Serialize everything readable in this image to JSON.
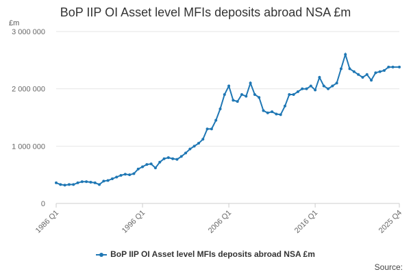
{
  "chart_data": {
    "type": "line",
    "title": "BoP IIP OI Asset level MFIs deposits abroad NSA £m",
    "ylabel": "£m",
    "xlabel": "",
    "ylim": [
      0,
      3000000
    ],
    "y_ticks": [
      0,
      1000000,
      2000000,
      3000000
    ],
    "y_tick_labels": [
      "0",
      "1 000 000",
      "2 000 000",
      "3 000 000"
    ],
    "x_tick_labels": [
      "1986 Q1",
      "1996 Q1",
      "2006 Q1",
      "2016 Q1",
      "2025 Q4"
    ],
    "x_ticks": [
      1986.0,
      1996.0,
      2006.0,
      2016.0,
      2025.75
    ],
    "xlim": [
      1986.0,
      2025.75
    ],
    "grid": true,
    "legend_position": "bottom-center",
    "color": "#1f77b4",
    "series": [
      {
        "name": "BoP IIP OI Asset level MFIs deposits abroad NSA £m",
        "x": [
          1986.0,
          1986.5,
          1987.0,
          1987.5,
          1988.0,
          1988.5,
          1989.0,
          1989.5,
          1990.0,
          1990.5,
          1991.0,
          1991.5,
          1992.0,
          1992.5,
          1993.0,
          1993.5,
          1994.0,
          1994.5,
          1995.0,
          1995.5,
          1996.0,
          1996.5,
          1997.0,
          1997.5,
          1998.0,
          1998.5,
          1999.0,
          1999.5,
          2000.0,
          2000.5,
          2001.0,
          2001.5,
          2002.0,
          2002.5,
          2003.0,
          2003.5,
          2004.0,
          2004.5,
          2005.0,
          2005.5,
          2006.0,
          2006.5,
          2007.0,
          2007.5,
          2008.0,
          2008.5,
          2009.0,
          2009.5,
          2010.0,
          2010.5,
          2011.0,
          2011.5,
          2012.0,
          2012.5,
          2013.0,
          2013.5,
          2014.0,
          2014.5,
          2015.0,
          2015.5,
          2016.0,
          2016.5,
          2017.0,
          2017.5,
          2018.0,
          2018.5,
          2019.0,
          2019.5,
          2020.0,
          2020.5,
          2021.0,
          2021.5,
          2022.0,
          2022.5,
          2023.0,
          2023.5,
          2024.0,
          2024.5,
          2025.0,
          2025.75
        ],
        "values": [
          360000,
          330000,
          320000,
          330000,
          330000,
          360000,
          380000,
          380000,
          370000,
          360000,
          330000,
          390000,
          400000,
          430000,
          460000,
          490000,
          510000,
          500000,
          520000,
          600000,
          640000,
          680000,
          690000,
          620000,
          720000,
          780000,
          800000,
          780000,
          770000,
          820000,
          880000,
          950000,
          1000000,
          1050000,
          1120000,
          1300000,
          1300000,
          1450000,
          1650000,
          1900000,
          2050000,
          1800000,
          1780000,
          1900000,
          1870000,
          2100000,
          1900000,
          1850000,
          1620000,
          1580000,
          1600000,
          1560000,
          1550000,
          1700000,
          1900000,
          1900000,
          1950000,
          2000000,
          2000000,
          2050000,
          1980000,
          2200000,
          2050000,
          2000000,
          2050000,
          2100000,
          2350000,
          2600000,
          2350000,
          2300000,
          2250000,
          2200000,
          2250000,
          2150000,
          2280000,
          2300000,
          2320000,
          2380000,
          2380000,
          2380000
        ]
      }
    ]
  },
  "source_label": "Source:"
}
